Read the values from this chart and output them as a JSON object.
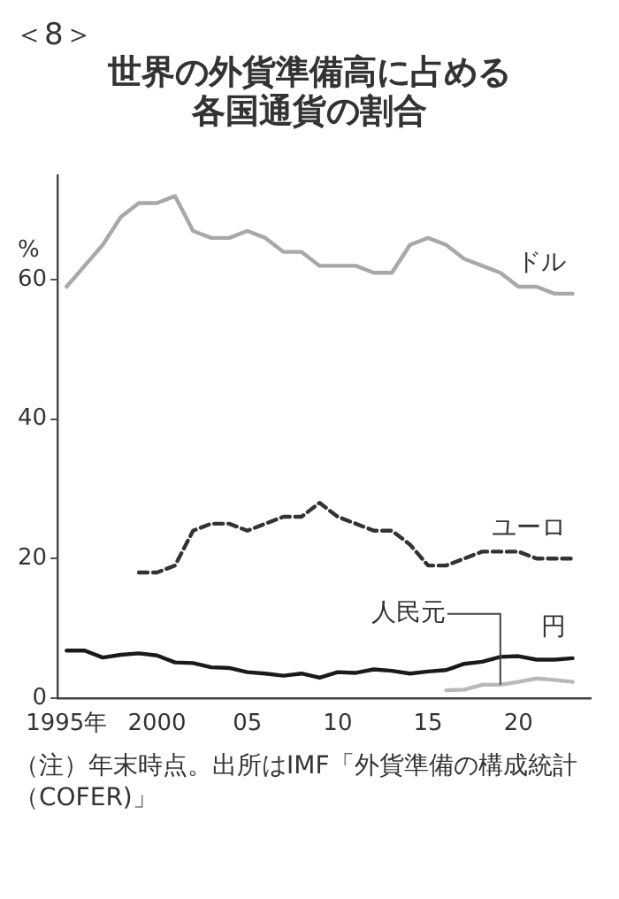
{
  "chart_data": {
    "type": "line",
    "subtitle": "＜8＞",
    "title": "世界の外貨準備高に占める各国通貨の割合",
    "ylabel": "%",
    "annotations": [
      "（注）年末時点。出所はIMF「外貨準備の構成統計（COFER)」"
    ],
    "xlim": [
      1994.5,
      2024
    ],
    "xticks": [
      {
        "value": 1995,
        "label": "1995年"
      },
      2000,
      {
        "value": 2005,
        "label": "05"
      },
      {
        "value": 2010,
        "label": "10"
      },
      {
        "value": 2015,
        "label": "15"
      },
      {
        "value": 2020,
        "label": "20"
      }
    ],
    "ylim": [
      0,
      75
    ],
    "yticks": [
      0,
      20,
      40,
      60
    ],
    "grid": false,
    "legend": false,
    "marker": "none",
    "series": [
      {
        "name": "ドル",
        "color": "#a8a8a8",
        "line_style": "solid",
        "x": [
          1995,
          1996,
          1997,
          1998,
          1999,
          2000,
          2001,
          2002,
          2003,
          2004,
          2005,
          2006,
          2007,
          2008,
          2009,
          2010,
          2011,
          2012,
          2013,
          2014,
          2015,
          2016,
          2017,
          2018,
          2019,
          2020,
          2021,
          2022,
          2023
        ],
        "values": [
          59,
          62,
          65,
          69,
          71,
          71,
          72,
          67,
          66,
          66,
          67,
          66,
          64,
          64,
          62,
          62,
          62,
          61,
          61,
          65,
          66,
          65,
          63,
          62,
          61,
          59,
          59,
          58,
          58
        ]
      },
      {
        "name": "ユーロ",
        "color": "#333333",
        "line_style": "dashed",
        "x": [
          1999,
          2000,
          2001,
          2002,
          2003,
          2004,
          2005,
          2006,
          2007,
          2008,
          2009,
          2010,
          2011,
          2012,
          2013,
          2014,
          2015,
          2016,
          2017,
          2018,
          2019,
          2020,
          2021,
          2022,
          2023
        ],
        "values": [
          18,
          18,
          19,
          24,
          25,
          25,
          24,
          25,
          26,
          26,
          28,
          26,
          25,
          24,
          24,
          22,
          19,
          19,
          20,
          21,
          21,
          21,
          20,
          20,
          20
        ]
      },
      {
        "name": "円",
        "color": "#1a1a1a",
        "line_style": "solid",
        "x": [
          1995,
          1996,
          1997,
          1998,
          1999,
          2000,
          2001,
          2002,
          2003,
          2004,
          2005,
          2006,
          2007,
          2008,
          2009,
          2010,
          2011,
          2012,
          2013,
          2014,
          2015,
          2016,
          2017,
          2018,
          2019,
          2020,
          2021,
          2022,
          2023
        ],
        "values": [
          6.8,
          6.8,
          5.8,
          6.2,
          6.4,
          6.1,
          5.1,
          5,
          4.4,
          4.3,
          3.7,
          3.5,
          3.2,
          3.5,
          2.9,
          3.7,
          3.6,
          4.1,
          3.9,
          3.5,
          3.8,
          4,
          4.9,
          5.2,
          5.9,
          6,
          5.5,
          5.5,
          5.7
        ]
      },
      {
        "name": "人民元",
        "color": "#b8b8b8",
        "line_style": "solid",
        "x": [
          2016,
          2017,
          2018,
          2019,
          2020,
          2021,
          2022,
          2023
        ],
        "values": [
          1.1,
          1.2,
          1.9,
          1.9,
          2.3,
          2.8,
          2.6,
          2.3
        ]
      }
    ]
  }
}
